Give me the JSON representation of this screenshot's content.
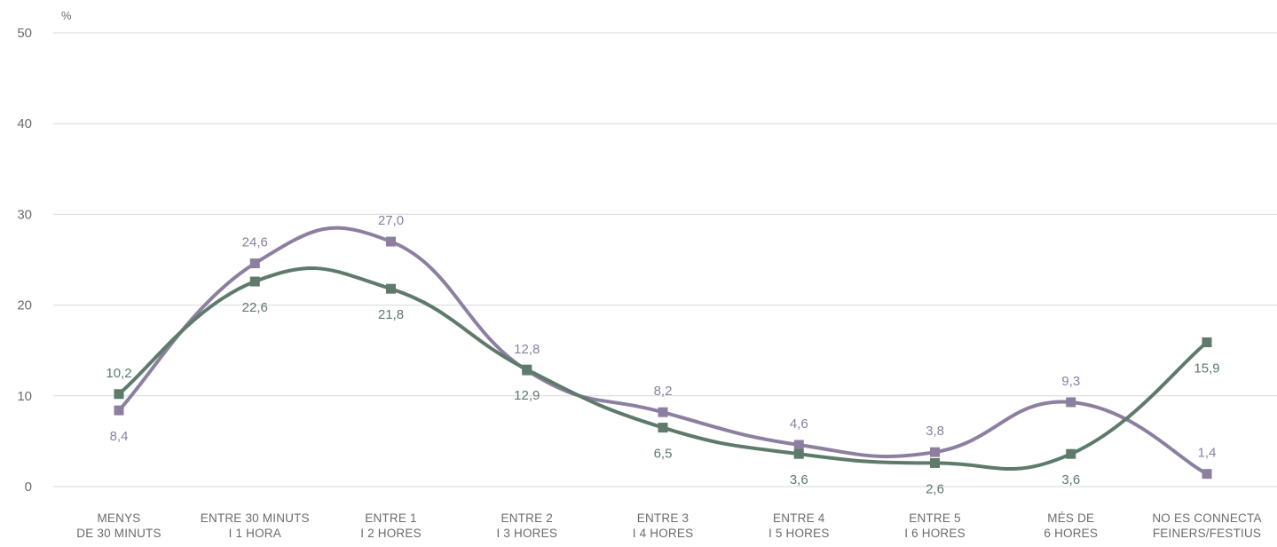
{
  "chart_data": {
    "type": "line",
    "ylabel": "%",
    "ylim": [
      0,
      50
    ],
    "yticks": [
      "0",
      "10",
      "20",
      "30",
      "40",
      "50"
    ],
    "grid": true,
    "smooth": true,
    "categories": [
      [
        "MENYS",
        "DE 30 MINUTS"
      ],
      [
        "ENTRE 30 MINUTS",
        "I 1 HORA"
      ],
      [
        "ENTRE 1",
        "I 2 HORES"
      ],
      [
        "ENTRE 2",
        "I 3 HORES"
      ],
      [
        "ENTRE 3",
        "I 4 HORES"
      ],
      [
        "ENTRE 4",
        "I 5 HORES"
      ],
      [
        "ENTRE 5",
        "I 6 HORES"
      ],
      [
        "MÉS DE",
        "6 HORES"
      ],
      [
        "NO ES CONNECTA",
        "FEINERS/FESTIUS"
      ]
    ],
    "series": [
      {
        "color": "#5e7a6b",
        "values": [
          10.2,
          22.6,
          21.8,
          12.9,
          6.5,
          3.6,
          2.6,
          3.6,
          15.9
        ],
        "labels": [
          "10,2",
          "22,6",
          "21,8",
          "12,9",
          "6,5",
          "3,6",
          "2,6",
          "3,6",
          "15,9"
        ],
        "label_side": [
          "above",
          "below",
          "below",
          "below",
          "below",
          "below",
          "below",
          "below",
          "below"
        ]
      },
      {
        "color": "#8c7fa0",
        "values": [
          8.4,
          24.6,
          27.0,
          12.8,
          8.2,
          4.6,
          3.8,
          9.3,
          1.4
        ],
        "labels": [
          "8,4",
          "24,6",
          "27,0",
          "12,8",
          "8,2",
          "4,6",
          "3,8",
          "9,3",
          "1,4"
        ],
        "label_side": [
          "below",
          "above",
          "above",
          "above",
          "above",
          "above",
          "above",
          "above",
          "above"
        ]
      }
    ]
  }
}
